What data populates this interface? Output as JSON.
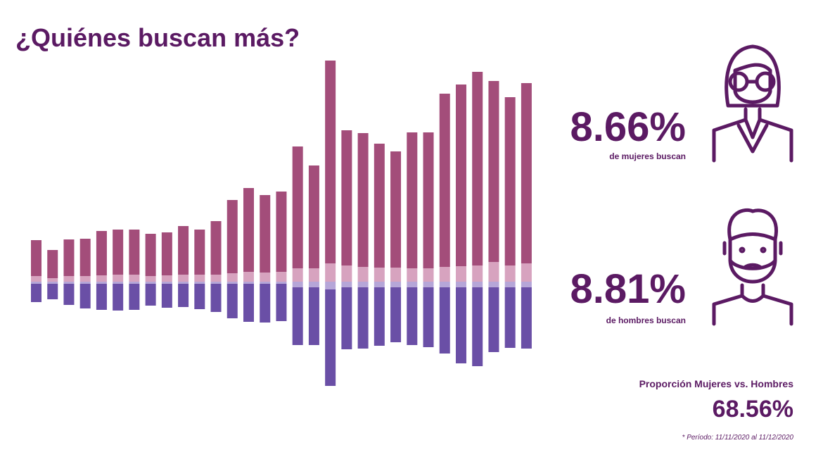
{
  "chart_data": {
    "type": "diverging-stacked-bar",
    "title": "¿Quiénes buscan más?",
    "series": [
      {
        "color": "#d7a3bf",
        "values": [
          8,
          5,
          8,
          8,
          9,
          10,
          10,
          8,
          9,
          10,
          10,
          10,
          12,
          14,
          13,
          14,
          19,
          19,
          26,
          23,
          21,
          20,
          20,
          19,
          19,
          21,
          22,
          23,
          28,
          23,
          26
        ]
      },
      {
        "color": "#a34d7a",
        "values": [
          51,
          40,
          52,
          53,
          63,
          64,
          64,
          60,
          61,
          69,
          64,
          76,
          104,
          119,
          110,
          114,
          173,
          146,
          288,
          192,
          190,
          176,
          165,
          193,
          193,
          246,
          258,
          275,
          257,
          239,
          256
        ]
      },
      {
        "color": "#b6a6d8",
        "values": [
          3,
          3,
          3,
          3,
          3,
          3,
          3,
          3,
          3,
          3,
          3,
          3,
          3,
          3,
          3,
          3,
          8,
          8,
          11,
          8,
          8,
          8,
          8,
          8,
          8,
          8,
          8,
          8,
          8,
          8,
          8
        ]
      },
      {
        "color": "#6a4fa6",
        "values": [
          26,
          22,
          30,
          35,
          37,
          38,
          37,
          31,
          34,
          33,
          36,
          40,
          49,
          54,
          55,
          53,
          82,
          82,
          137,
          88,
          87,
          83,
          78,
          82,
          85,
          94,
          108,
          112,
          92,
          86,
          87
        ]
      }
    ]
  },
  "stats": [
    {
      "value": "8.66%",
      "label": "de mujeres buscan"
    },
    {
      "value": "8.81%",
      "label": "de hombres buscan"
    }
  ],
  "proportion": {
    "label": "Proporción Mujeres vs. Hombres",
    "value": "68.56%"
  },
  "footnote": "* Período: 11/11/2020 al 11/12/2020"
}
